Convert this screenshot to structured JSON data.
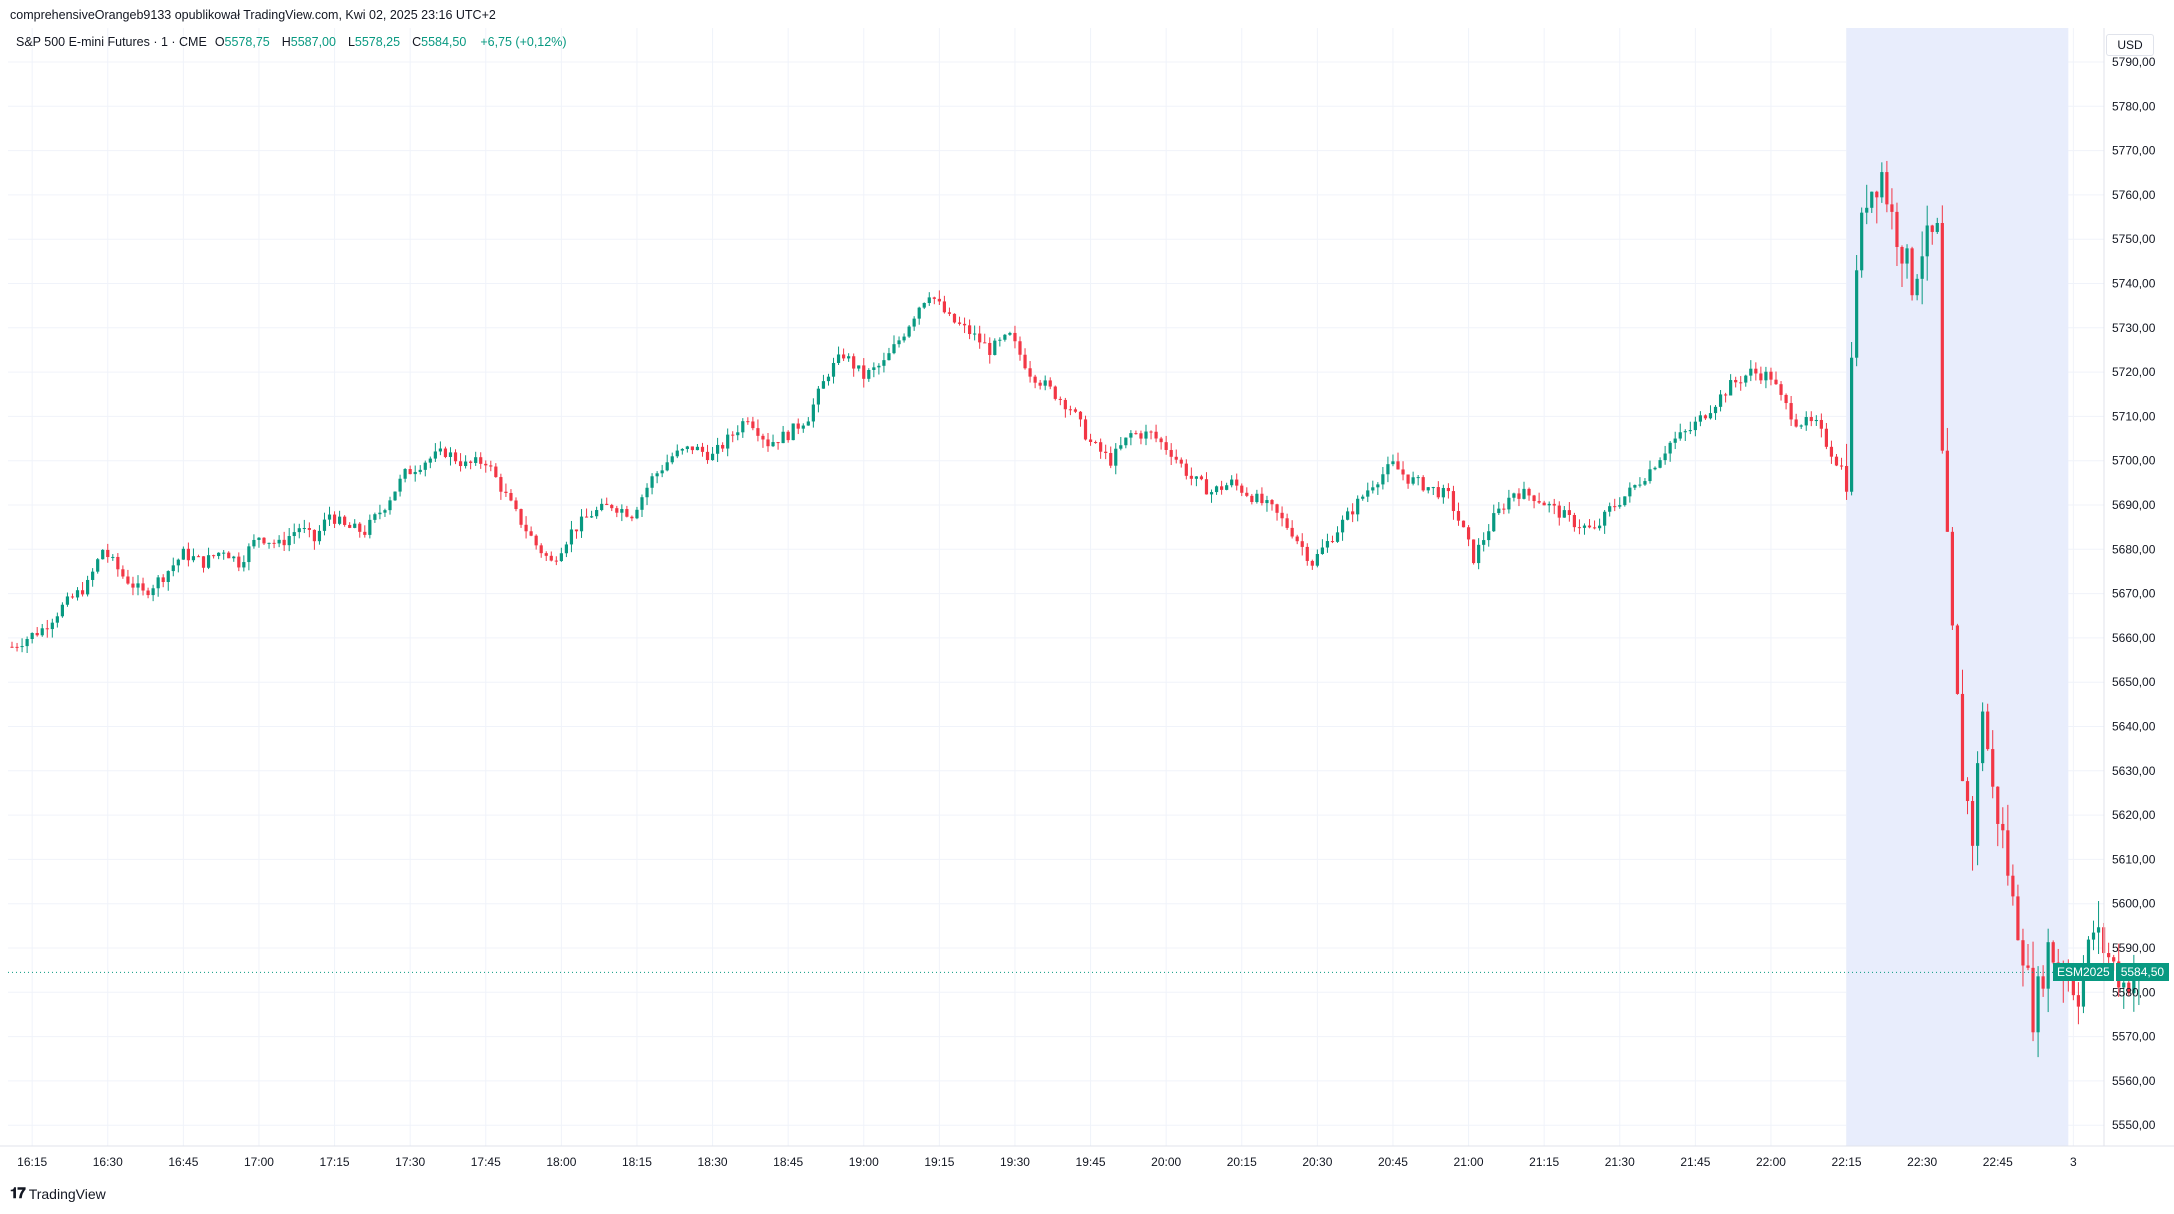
{
  "header": {
    "published_by": "comprehensiveOrangeb9133 opublikował TradingView.com, Kwi 02, 2025 23:16 UTC+2"
  },
  "legend": {
    "instrument": "S&P 500 E-mini Futures · 1 · CME",
    "open_label": "O",
    "open_value": "5578,75",
    "high_label": "H",
    "high_value": "5587,00",
    "low_label": "L",
    "low_value": "5578,25",
    "close_label": "C",
    "close_value": "5584,50",
    "change": "+6,75 (+0,12%)"
  },
  "currency": "USD",
  "last_price": {
    "symbol": "ESM2025",
    "price": "5584,50"
  },
  "branding": {
    "logo_text": "TradingView"
  },
  "colors": {
    "up": "#089981",
    "down": "#f23645",
    "highlight": "#e8edfc",
    "grid": "#f0f3fa",
    "last_price_line": "#089981"
  },
  "chart_data": {
    "type": "candlestick",
    "y_axis": {
      "ticks": [
        "5790,00",
        "5780,00",
        "5770,00",
        "5760,00",
        "5750,00",
        "5740,00",
        "5730,00",
        "5720,00",
        "5710,00",
        "5700,00",
        "5690,00",
        "5680,00",
        "5670,00",
        "5660,00",
        "5650,00",
        "5640,00",
        "5630,00",
        "5620,00",
        "5610,00",
        "5600,00",
        "5590,00",
        "5580,00",
        "5570,00",
        "5560,00",
        "5550,00"
      ],
      "range": [
        5546,
        5793
      ]
    },
    "x_axis": {
      "ticks": [
        "16:15",
        "16:30",
        "16:45",
        "17:00",
        "17:15",
        "17:30",
        "17:45",
        "18:00",
        "18:15",
        "18:30",
        "18:45",
        "19:00",
        "19:15",
        "19:30",
        "19:45",
        "20:00",
        "20:15",
        "20:30",
        "20:45",
        "21:00",
        "21:15",
        "21:30",
        "21:45",
        "22:00",
        "22:15",
        "22:30",
        "22:45",
        "3"
      ]
    },
    "highlight_range": [
      "22:15",
      "22:59"
    ],
    "last_close": 5584.5,
    "series_path": [
      [
        0,
        5658
      ],
      [
        6,
        5662
      ],
      [
        10,
        5667
      ],
      [
        15,
        5672
      ],
      [
        18,
        5680
      ],
      [
        22,
        5674
      ],
      [
        26,
        5670
      ],
      [
        30,
        5674
      ],
      [
        34,
        5679
      ],
      [
        38,
        5677
      ],
      [
        42,
        5680
      ],
      [
        45,
        5677
      ],
      [
        49,
        5683
      ],
      [
        53,
        5681
      ],
      [
        57,
        5685
      ],
      [
        60,
        5682
      ],
      [
        63,
        5688
      ],
      [
        66,
        5685
      ],
      [
        70,
        5684
      ],
      [
        74,
        5690
      ],
      [
        78,
        5697
      ],
      [
        82,
        5700
      ],
      [
        86,
        5702
      ],
      [
        90,
        5699
      ],
      [
        94,
        5700
      ],
      [
        96,
        5696
      ],
      [
        100,
        5688
      ],
      [
        104,
        5681
      ],
      [
        107,
        5677
      ],
      [
        111,
        5684
      ],
      [
        115,
        5688
      ],
      [
        119,
        5690
      ],
      [
        123,
        5688
      ],
      [
        127,
        5696
      ],
      [
        131,
        5701
      ],
      [
        135,
        5703
      ],
      [
        139,
        5701
      ],
      [
        143,
        5706
      ],
      [
        146,
        5710
      ],
      [
        150,
        5704
      ],
      [
        154,
        5706
      ],
      [
        158,
        5710
      ],
      [
        162,
        5720
      ],
      [
        165,
        5724
      ],
      [
        169,
        5719
      ],
      [
        173,
        5722
      ],
      [
        177,
        5729
      ],
      [
        180,
        5735
      ],
      [
        182,
        5738
      ],
      [
        186,
        5732
      ],
      [
        190,
        5729
      ],
      [
        194,
        5725
      ],
      [
        198,
        5728
      ],
      [
        202,
        5720
      ],
      [
        206,
        5716
      ],
      [
        210,
        5712
      ],
      [
        214,
        5704
      ],
      [
        218,
        5700
      ],
      [
        222,
        5706
      ],
      [
        226,
        5706
      ],
      [
        230,
        5702
      ],
      [
        234,
        5696
      ],
      [
        238,
        5693
      ],
      [
        242,
        5695
      ],
      [
        246,
        5692
      ],
      [
        250,
        5689
      ],
      [
        254,
        5684
      ],
      [
        258,
        5677
      ],
      [
        262,
        5683
      ],
      [
        266,
        5689
      ],
      [
        270,
        5695
      ],
      [
        274,
        5699
      ],
      [
        277,
        5696
      ],
      [
        281,
        5694
      ],
      [
        285,
        5692
      ],
      [
        288,
        5684
      ],
      [
        290,
        5678
      ],
      [
        294,
        5687
      ],
      [
        298,
        5693
      ],
      [
        302,
        5692
      ],
      [
        306,
        5689
      ],
      [
        310,
        5686
      ],
      [
        314,
        5684
      ],
      [
        317,
        5689
      ],
      [
        321,
        5693
      ],
      [
        325,
        5698
      ],
      [
        329,
        5704
      ],
      [
        333,
        5707
      ],
      [
        337,
        5712
      ],
      [
        341,
        5717
      ],
      [
        345,
        5720
      ],
      [
        349,
        5719
      ],
      [
        351,
        5714
      ],
      [
        354,
        5709
      ],
      [
        358,
        5708
      ],
      [
        362,
        5700
      ],
      [
        364,
        5697
      ],
      [
        366,
        5745
      ],
      [
        368,
        5760
      ],
      [
        371,
        5765
      ],
      [
        373,
        5755
      ],
      [
        375,
        5748
      ],
      [
        377,
        5740
      ],
      [
        379,
        5748
      ],
      [
        382,
        5751
      ],
      [
        383,
        5700
      ],
      [
        385,
        5660
      ],
      [
        387,
        5630
      ],
      [
        389,
        5615
      ],
      [
        391,
        5645
      ],
      [
        393,
        5625
      ],
      [
        395,
        5615
      ],
      [
        397,
        5600
      ],
      [
        399,
        5590
      ],
      [
        401,
        5575
      ],
      [
        404,
        5590
      ],
      [
        407,
        5585
      ],
      [
        410,
        5580
      ],
      [
        413,
        5594
      ],
      [
        416,
        5588
      ],
      [
        419,
        5582
      ],
      [
        422,
        5584.5
      ]
    ]
  }
}
